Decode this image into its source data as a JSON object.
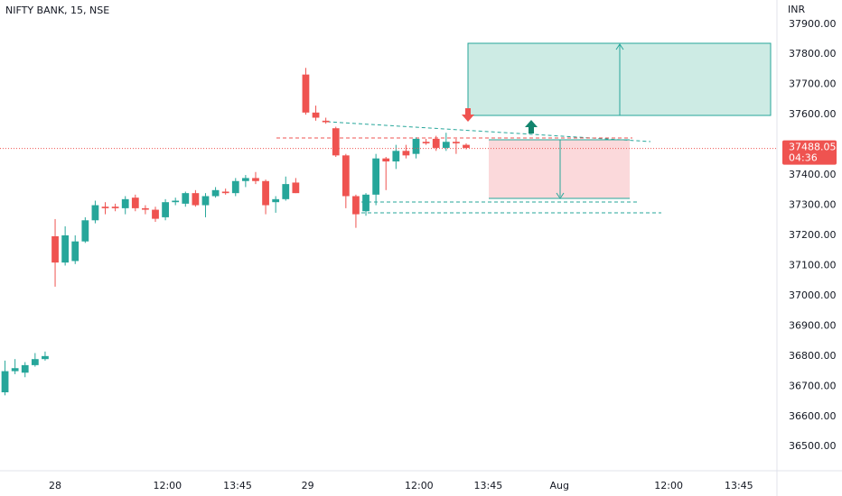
{
  "chart_data": {
    "type": "candlestick",
    "title": "NIFTY BANK, 15, NSE",
    "currency": "INR",
    "up_color": "#26a69a",
    "down_color": "#ef5350",
    "open": [
      36680,
      36750,
      36745,
      36770,
      36790,
      37197,
      37110,
      37115,
      37180,
      37250,
      37295,
      37295,
      37290,
      37325,
      37290,
      37285,
      37260,
      37310,
      37305,
      37340,
      37300,
      37330,
      37345,
      37340,
      37380,
      37390,
      37380,
      37310,
      37320,
      37375,
      37733,
      37607,
      37580,
      37555,
      37465,
      37330,
      37280,
      37335,
      37455,
      37445,
      37480,
      37470,
      37510,
      37520,
      37490,
      37510,
      37500
    ],
    "high": [
      36785,
      36790,
      36780,
      36810,
      36815,
      37254,
      37230,
      37200,
      37260,
      37315,
      37310,
      37305,
      37330,
      37335,
      37300,
      37295,
      37320,
      37325,
      37345,
      37350,
      37340,
      37360,
      37355,
      37390,
      37400,
      37410,
      37385,
      37330,
      37395,
      37390,
      37755,
      37630,
      37590,
      37560,
      37470,
      37335,
      37340,
      37470,
      37460,
      37500,
      37500,
      37525,
      37520,
      37530,
      37540,
      37520,
      37505
    ],
    "low": [
      36670,
      36740,
      36730,
      36765,
      36785,
      37030,
      37100,
      37105,
      37175,
      37240,
      37270,
      37280,
      37270,
      37280,
      37270,
      37245,
      37250,
      37300,
      37295,
      37295,
      37260,
      37325,
      37335,
      37330,
      37360,
      37370,
      37270,
      37275,
      37315,
      37340,
      37600,
      37580,
      37570,
      37460,
      37290,
      37225,
      37265,
      37300,
      37350,
      37420,
      37455,
      37455,
      37500,
      37480,
      37480,
      37470,
      37485
    ],
    "close": [
      36750,
      36760,
      36770,
      36790,
      36800,
      37110,
      37200,
      37180,
      37250,
      37300,
      37290,
      37290,
      37320,
      37290,
      37285,
      37255,
      37310,
      37315,
      37340,
      37300,
      37330,
      37350,
      37340,
      37380,
      37390,
      37380,
      37300,
      37320,
      37370,
      37340,
      37607,
      37590,
      37575,
      37465,
      37330,
      37270,
      37335,
      37455,
      37445,
      37480,
      37465,
      37520,
      37505,
      37490,
      37510,
      37505,
      37490
    ],
    "xlim": [
      -0.5,
      77
    ],
    "xticks": [
      {
        "value": 5,
        "label": "28"
      },
      {
        "value": 16.2,
        "label": "12:00"
      },
      {
        "value": 23.2,
        "label": "13:45"
      },
      {
        "value": 30.2,
        "label": "29"
      },
      {
        "value": 41.3,
        "label": "12:00"
      },
      {
        "value": 48.2,
        "label": "13:45"
      },
      {
        "value": 55.3,
        "label": "Aug"
      },
      {
        "value": 66.2,
        "label": "12:00"
      },
      {
        "value": 73.2,
        "label": "13:45"
      }
    ],
    "ylim": [
      36420,
      37980
    ],
    "yticks": [
      {
        "value": 37900,
        "label": "37900.00"
      },
      {
        "value": 37800,
        "label": "37800.00"
      },
      {
        "value": 37700,
        "label": "37700.00"
      },
      {
        "value": 37600,
        "label": "37600.00"
      },
      {
        "value": 37400,
        "label": "37400.00"
      },
      {
        "value": 37300,
        "label": "37300.00"
      },
      {
        "value": 37200,
        "label": "37200.00"
      },
      {
        "value": 37100,
        "label": "37100.00"
      },
      {
        "value": 37000,
        "label": "37000.00"
      },
      {
        "value": 36900,
        "label": "36900.00"
      },
      {
        "value": 36800,
        "label": "36800.00"
      },
      {
        "value": 36700,
        "label": "36700.00"
      },
      {
        "value": 36600,
        "label": "36600.00"
      },
      {
        "value": 36500,
        "label": "36500.00"
      }
    ],
    "last_price": 37488.05,
    "countdown": "04:36",
    "grid": false
  }
}
